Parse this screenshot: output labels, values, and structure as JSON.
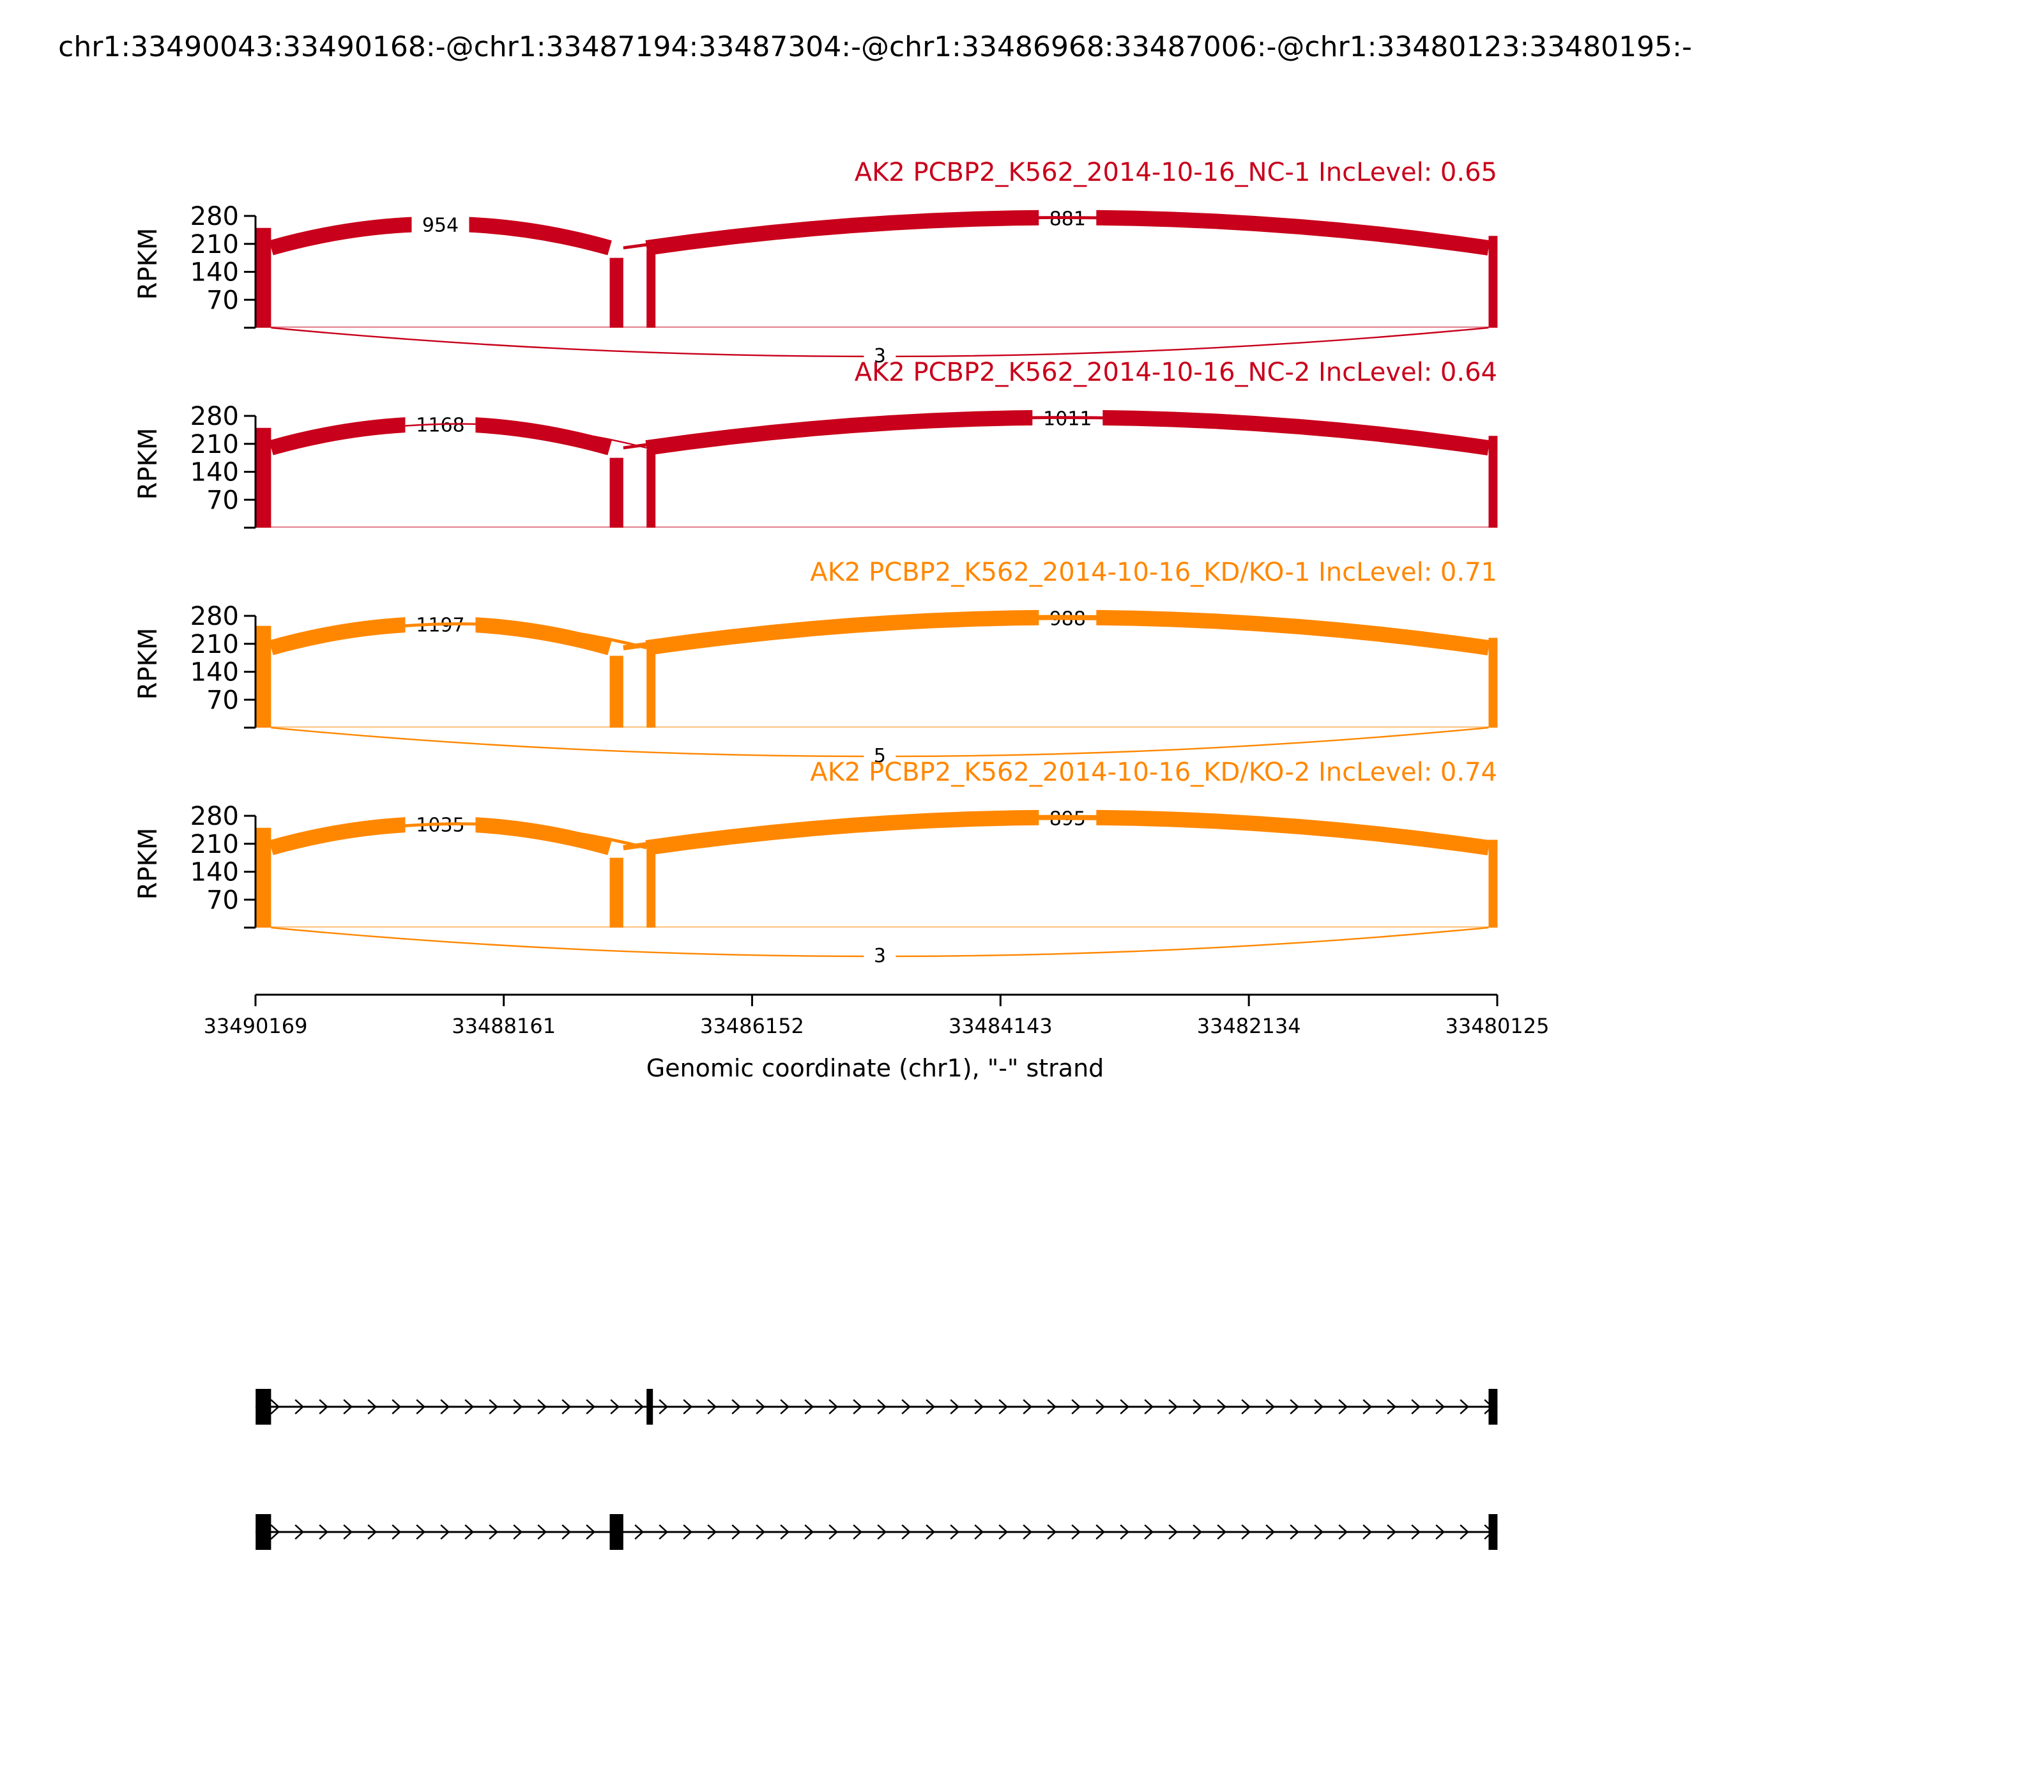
{
  "chart_data": {
    "type": "sashimi",
    "title": "chr1:33490043:33490168:-@chr1:33487194:33487304:-@chr1:33486968:33487006:-@chr1:33480123:33480195:-",
    "xlabel": "Genomic coordinate (chr1), \"-\" strand",
    "ylabel": "RPKM",
    "x_range": [
      33490169,
      33480125
    ],
    "x_ticks": [
      "33490169",
      "33488161",
      "33486152",
      "33484143",
      "33482134",
      "33480125"
    ],
    "x_tick_values": [
      33490169,
      33488161,
      33486152,
      33484143,
      33482134,
      33480125
    ],
    "y_range": [
      0,
      280
    ],
    "y_ticks": [
      "70",
      "140",
      "210",
      "280"
    ],
    "y_tick_values": [
      70,
      140,
      210,
      280
    ],
    "exons": [
      {
        "start": 33490168,
        "end": 33490043
      },
      {
        "start": 33487304,
        "end": 33487194
      },
      {
        "start": 33487006,
        "end": 33486968
      },
      {
        "start": 33480195,
        "end": 33480123
      }
    ],
    "samples": [
      {
        "label": "AK2 PCBP2_K562_2014-10-16_NC-1 IncLevel: 0.65",
        "color": "#c8001b",
        "coverage": [
          250,
          175,
          195,
          230
        ],
        "junctions": [
          {
            "from": 33490043,
            "to": 33487304,
            "count": "954",
            "side": "above",
            "width": 3
          },
          {
            "from": 33487006,
            "to": 33480195,
            "count": "881",
            "side": "above",
            "width": 3
          },
          {
            "from": 33487194,
            "to": 33480195,
            "count": "",
            "side": "above",
            "width": 0.6
          },
          {
            "from": 33490043,
            "to": 33480195,
            "count": "3",
            "side": "below",
            "width": 0.3
          }
        ]
      },
      {
        "label": "AK2 PCBP2_K562_2014-10-16_NC-2 IncLevel: 0.64",
        "color": "#c8001b",
        "coverage": [
          250,
          175,
          195,
          230
        ],
        "junctions": [
          {
            "from": 33490043,
            "to": 33487304,
            "count": "1168",
            "side": "above",
            "width": 3
          },
          {
            "from": 33487006,
            "to": 33480195,
            "count": "1011",
            "side": "above",
            "width": 3
          },
          {
            "from": 33490043,
            "to": 33487006,
            "count": "",
            "side": "above",
            "width": 0.3
          },
          {
            "from": 33487194,
            "to": 33480195,
            "count": "",
            "side": "above",
            "width": 0.6
          }
        ]
      },
      {
        "label": "AK2 PCBP2_K562_2014-10-16_KD/KO-1 IncLevel: 0.71",
        "color": "#ff8700",
        "coverage": [
          255,
          180,
          200,
          225
        ],
        "junctions": [
          {
            "from": 33490043,
            "to": 33487304,
            "count": "1197",
            "side": "above",
            "width": 3
          },
          {
            "from": 33487006,
            "to": 33480195,
            "count": "988",
            "side": "above",
            "width": 3
          },
          {
            "from": 33490043,
            "to": 33487006,
            "count": "",
            "side": "above",
            "width": 0.6
          },
          {
            "from": 33487194,
            "to": 33480195,
            "count": "",
            "side": "above",
            "width": 1
          },
          {
            "from": 33490043,
            "to": 33480195,
            "count": "5",
            "side": "below",
            "width": 0.3
          }
        ]
      },
      {
        "label": "AK2 PCBP2_K562_2014-10-16_KD/KO-2 IncLevel: 0.74",
        "color": "#ff8700",
        "coverage": [
          250,
          175,
          195,
          220
        ],
        "junctions": [
          {
            "from": 33490043,
            "to": 33487304,
            "count": "1035",
            "side": "above",
            "width": 3
          },
          {
            "from": 33487006,
            "to": 33480195,
            "count": "895",
            "side": "above",
            "width": 3
          },
          {
            "from": 33490043,
            "to": 33487006,
            "count": "",
            "side": "above",
            "width": 0.6
          },
          {
            "from": 33487194,
            "to": 33480195,
            "count": "",
            "side": "above",
            "width": 1
          },
          {
            "from": 33490043,
            "to": 33480195,
            "count": "3",
            "side": "below",
            "width": 0.3
          }
        ]
      }
    ],
    "isoforms": [
      {
        "exons": [
          {
            "start": 33490168,
            "end": 33490043
          },
          {
            "start": 33487006,
            "end": 33486968
          },
          {
            "start": 33480195,
            "end": 33480123
          }
        ]
      },
      {
        "exons": [
          {
            "start": 33490168,
            "end": 33490043
          },
          {
            "start": 33487304,
            "end": 33487194
          },
          {
            "start": 33480195,
            "end": 33480123
          }
        ]
      }
    ]
  }
}
